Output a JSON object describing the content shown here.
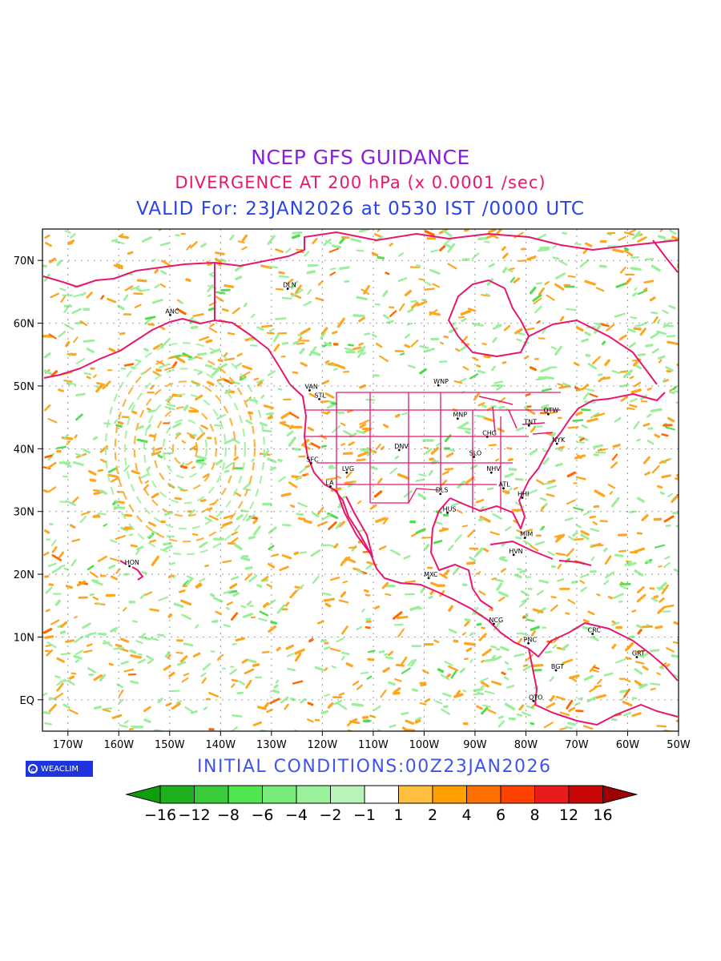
{
  "title": {
    "line1": "NCEP GFS GUIDANCE",
    "line2": "DIVERGENCE AT 200 hPa (x 0.0001 /sec)",
    "line3": "VALID For: 23JAN2026 at 0530 IST /0000 UTC"
  },
  "axes": {
    "lon_ticks": [
      "170W",
      "160W",
      "150W",
      "140W",
      "130W",
      "120W",
      "110W",
      "100W",
      "90W",
      "80W",
      "70W",
      "60W",
      "50W"
    ],
    "lat_ticks": [
      "70N",
      "60N",
      "50N",
      "40N",
      "30N",
      "20N",
      "10N",
      "EQ"
    ]
  },
  "cities": [
    {
      "name": "DLN",
      "lon": -126.8,
      "lat": 65.5
    },
    {
      "name": "ANC",
      "lon": -149.9,
      "lat": 61.3
    },
    {
      "name": "VAN",
      "lon": -122.5,
      "lat": 49.3
    },
    {
      "name": "STL",
      "lon": -120.6,
      "lat": 47.9
    },
    {
      "name": "WNP",
      "lon": -97.2,
      "lat": 50.1
    },
    {
      "name": "MNP",
      "lon": -93.4,
      "lat": 44.8
    },
    {
      "name": "OTW",
      "lon": -75.6,
      "lat": 45.5
    },
    {
      "name": "TNT",
      "lon": -79.4,
      "lat": 43.7
    },
    {
      "name": "NYK",
      "lon": -73.9,
      "lat": 40.8
    },
    {
      "name": "CHG",
      "lon": -87.6,
      "lat": 41.9
    },
    {
      "name": "DNV",
      "lon": -104.9,
      "lat": 39.8
    },
    {
      "name": "SFC",
      "lon": -122.2,
      "lat": 37.7
    },
    {
      "name": "LVG",
      "lon": -115.2,
      "lat": 36.2
    },
    {
      "name": "SLO",
      "lon": -90.2,
      "lat": 38.7
    },
    {
      "name": "NHV",
      "lon": -86.8,
      "lat": 36.2
    },
    {
      "name": "LA",
      "lon": -118.4,
      "lat": 34.0
    },
    {
      "name": "DLS",
      "lon": -96.8,
      "lat": 32.8
    },
    {
      "name": "ATL",
      "lon": -84.4,
      "lat": 33.7
    },
    {
      "name": "HHI",
      "lon": -80.7,
      "lat": 32.2
    },
    {
      "name": "HUS",
      "lon": -95.4,
      "lat": 29.8
    },
    {
      "name": "MIM",
      "lon": -80.2,
      "lat": 25.8
    },
    {
      "name": "HVN",
      "lon": -82.4,
      "lat": 23.1
    },
    {
      "name": "HON",
      "lon": -157.9,
      "lat": 21.3
    },
    {
      "name": "MXC",
      "lon": -99.1,
      "lat": 19.4
    },
    {
      "name": "NCG",
      "lon": -86.3,
      "lat": 12.1
    },
    {
      "name": "CRC",
      "lon": -66.9,
      "lat": 10.5
    },
    {
      "name": "PNC",
      "lon": -79.5,
      "lat": 9.0
    },
    {
      "name": "GRT",
      "lon": -58.2,
      "lat": 6.8
    },
    {
      "name": "BGT",
      "lon": -74.1,
      "lat": 4.7
    },
    {
      "name": "QTO",
      "lon": -78.5,
      "lat": -0.2
    }
  ],
  "legend": {
    "labels": [
      "−16",
      "−12",
      "−8",
      "−6",
      "−4",
      "−2",
      "−1",
      "1",
      "2",
      "4",
      "6",
      "8",
      "12",
      "16"
    ],
    "colors": [
      "#0e9e0e",
      "#1fb01f",
      "#3acb3a",
      "#50e650",
      "#78eb78",
      "#9bf09b",
      "#b9f5b9",
      "#ffffff",
      "#ffc042",
      "#ffa000",
      "#ff7000",
      "#ff4200",
      "#e81c1c",
      "#c80606",
      "#9c0000"
    ]
  },
  "colors": {
    "coastline": "#e8176e",
    "positive": "#ffa621",
    "negative": "#9bef9b"
  },
  "logo": "WEACLIM",
  "initial_conditions": "INITIAL  CONDITIONS:00Z23JAN2026"
}
